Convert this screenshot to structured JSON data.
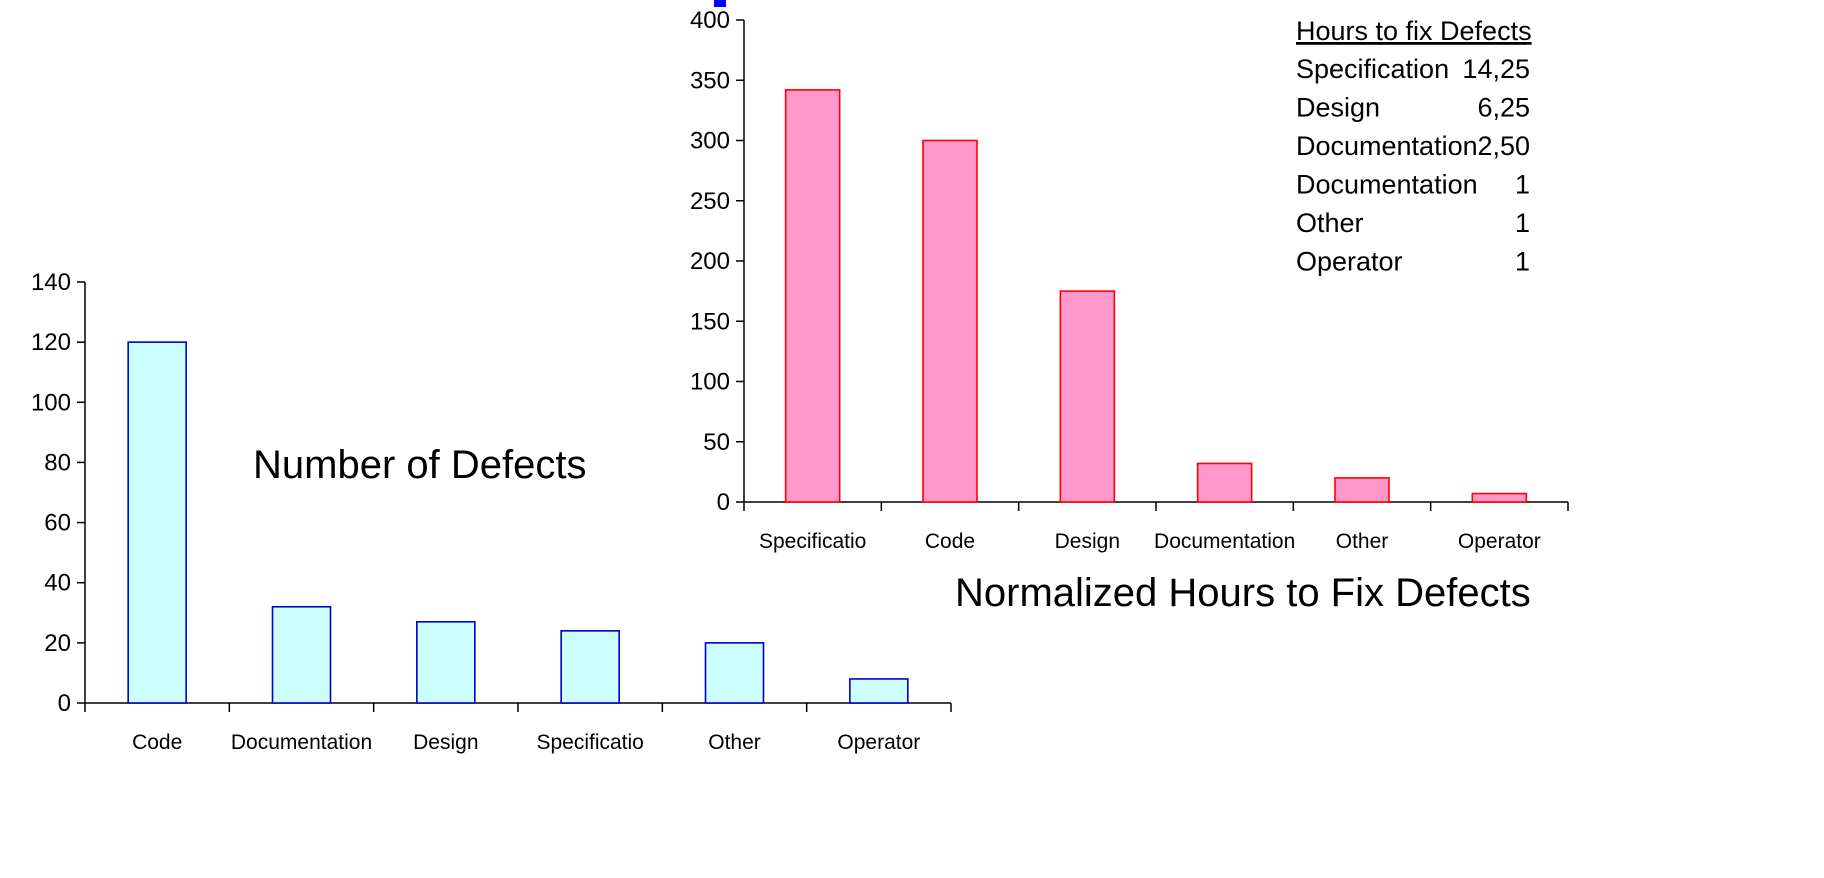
{
  "chart_data": [
    {
      "type": "bar",
      "title": "Number of Defects",
      "categories": [
        "Code",
        "Documentation",
        "Design",
        "Specificatio",
        "Other",
        "Operator"
      ],
      "values": [
        120,
        32,
        27,
        24,
        20,
        8
      ],
      "ylim": [
        0,
        140
      ],
      "yticks": [
        0,
        20,
        40,
        60,
        80,
        100,
        120,
        140
      ],
      "grid": false,
      "colors": {
        "fill": "#ccffff",
        "stroke": "#0000cc"
      }
    },
    {
      "type": "bar",
      "title": "Normalized Hours to Fix Defects",
      "categories": [
        "Specificatio",
        "Code",
        "Design",
        "Documentation",
        "Other",
        "Operator"
      ],
      "values": [
        342,
        300,
        175,
        32,
        20,
        7
      ],
      "ylim": [
        0,
        400
      ],
      "yticks": [
        0,
        50,
        100,
        150,
        200,
        250,
        300,
        350,
        400
      ],
      "grid": false,
      "colors": {
        "fill": "#ff99cc",
        "stroke": "#ff0000"
      },
      "table": {
        "heading": "Hours to fix Defects",
        "rows": [
          {
            "label": "Specification",
            "value": "14,25"
          },
          {
            "label": "Design",
            "value": "6,25"
          },
          {
            "label": "Documentation",
            "value": "2,50"
          },
          {
            "label": "Documentation",
            "value": "1"
          },
          {
            "label": "Other",
            "value": "1"
          },
          {
            "label": "Operator",
            "value": "1"
          }
        ]
      }
    }
  ]
}
